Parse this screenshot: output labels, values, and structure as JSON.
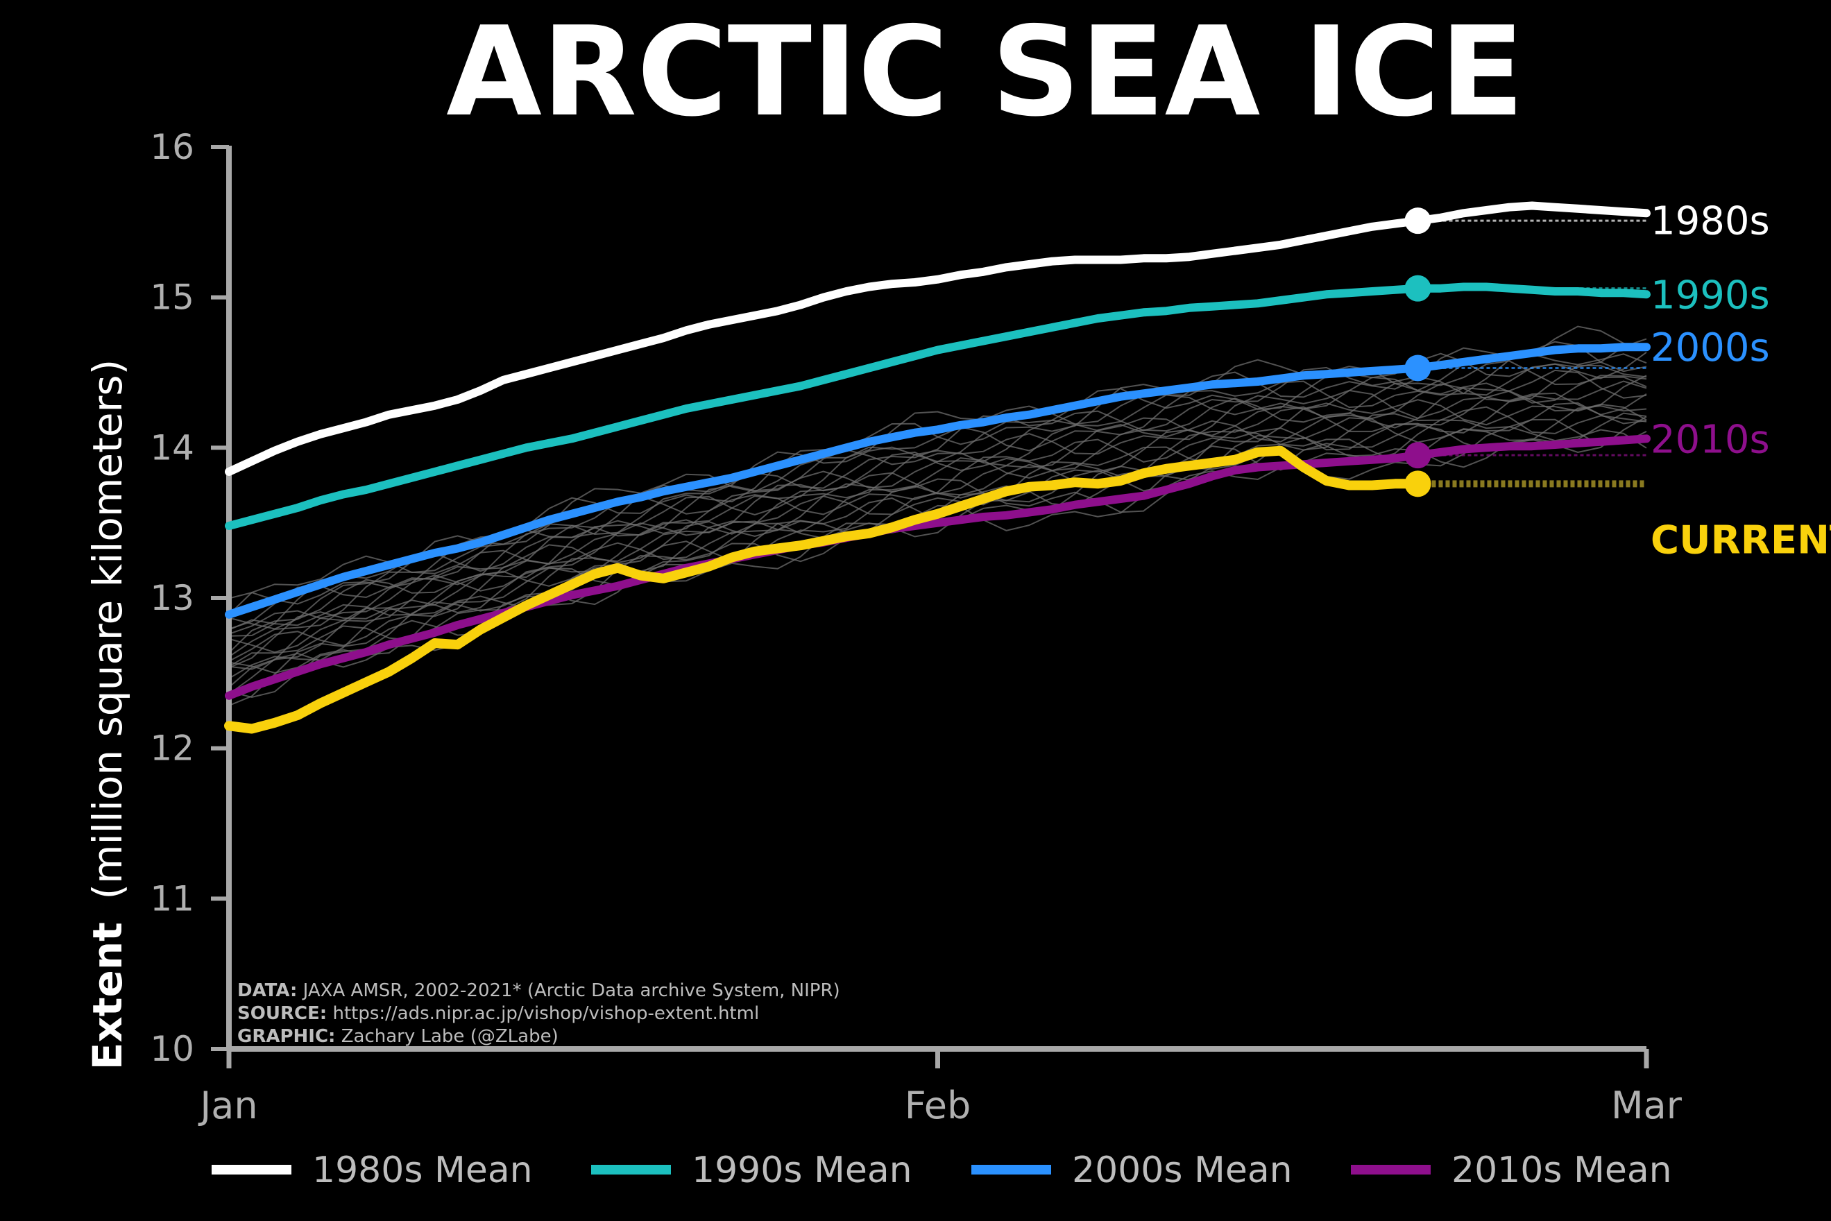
{
  "chart_data": {
    "type": "line",
    "title": "ARCTIC SEA ICE",
    "ylabel_bold": "Extent",
    "ylabel_rest": "(million square kilometers)",
    "xlabel": "",
    "ylim": [
      10,
      16
    ],
    "yticks": [
      "10",
      "11",
      "12",
      "13",
      "14",
      "15",
      "16"
    ],
    "xticks": [
      {
        "label": "Jan",
        "day": 0
      },
      {
        "label": "Feb",
        "day": 31
      },
      {
        "label": "Mar",
        "day": 62
      }
    ],
    "xlim_days": [
      0,
      62
    ],
    "grid": false,
    "legend": "bottom",
    "credits": [
      {
        "bold": "DATA:",
        "text": " JAXA AMSR, 2002-2021* (Arctic Data archive System, NIPR)"
      },
      {
        "bold": "SOURCE:",
        "text": " https://ads.nipr.ac.jp/vishop/vishop-extent.html"
      },
      {
        "bold": "GRAPHIC:",
        "text": " Zachary Labe (@ZLabe)"
      }
    ],
    "marker_day": 52,
    "series": [
      {
        "name": "1980s",
        "legend": "1980s Mean",
        "color": "#ffffff",
        "end_label": "1980s",
        "values": [
          13.84,
          13.91,
          13.98,
          14.04,
          14.09,
          14.13,
          14.17,
          14.22,
          14.25,
          14.28,
          14.32,
          14.38,
          14.45,
          14.49,
          14.53,
          14.57,
          14.61,
          14.65,
          14.69,
          14.73,
          14.78,
          14.82,
          14.85,
          14.88,
          14.91,
          14.95,
          15.0,
          15.04,
          15.07,
          15.09,
          15.1,
          15.12,
          15.15,
          15.17,
          15.2,
          15.22,
          15.24,
          15.25,
          15.25,
          15.25,
          15.26,
          15.26,
          15.27,
          15.29,
          15.31,
          15.33,
          15.35,
          15.38,
          15.41,
          15.44,
          15.47,
          15.49,
          15.51,
          15.53,
          15.56,
          15.58,
          15.6,
          15.61,
          15.6,
          15.59,
          15.58,
          15.57,
          15.56
        ]
      },
      {
        "name": "1990s",
        "legend": "1990s Mean",
        "color": "#1cc0bf",
        "end_label": "1990s",
        "values": [
          13.48,
          13.52,
          13.56,
          13.6,
          13.65,
          13.69,
          13.72,
          13.76,
          13.8,
          13.84,
          13.88,
          13.92,
          13.96,
          14.0,
          14.03,
          14.06,
          14.1,
          14.14,
          14.18,
          14.22,
          14.26,
          14.29,
          14.32,
          14.35,
          14.38,
          14.41,
          14.45,
          14.49,
          14.53,
          14.57,
          14.61,
          14.65,
          14.68,
          14.71,
          14.74,
          14.77,
          14.8,
          14.83,
          14.86,
          14.88,
          14.9,
          14.91,
          14.93,
          14.94,
          14.95,
          14.96,
          14.98,
          15.0,
          15.02,
          15.03,
          15.04,
          15.05,
          15.06,
          15.06,
          15.07,
          15.07,
          15.06,
          15.05,
          15.04,
          15.04,
          15.03,
          15.03,
          15.02
        ]
      },
      {
        "name": "2000s",
        "legend": "2000s Mean",
        "color": "#2b91ff",
        "end_label": "2000s",
        "values": [
          12.89,
          12.94,
          12.99,
          13.04,
          13.09,
          13.14,
          13.18,
          13.22,
          13.26,
          13.3,
          13.33,
          13.37,
          13.42,
          13.47,
          13.52,
          13.56,
          13.6,
          13.64,
          13.67,
          13.71,
          13.74,
          13.77,
          13.8,
          13.84,
          13.88,
          13.92,
          13.96,
          14.0,
          14.04,
          14.07,
          14.1,
          14.12,
          14.15,
          14.17,
          14.2,
          14.22,
          14.25,
          14.28,
          14.31,
          14.34,
          14.36,
          14.38,
          14.4,
          14.42,
          14.43,
          14.44,
          14.46,
          14.48,
          14.49,
          14.5,
          14.51,
          14.52,
          14.53,
          14.55,
          14.57,
          14.59,
          14.61,
          14.63,
          14.65,
          14.66,
          14.66,
          14.67,
          14.67
        ]
      },
      {
        "name": "2010s",
        "legend": "2010s Mean",
        "color": "#8e0f8c",
        "end_label": "2010s",
        "values": [
          12.35,
          12.41,
          12.46,
          12.51,
          12.56,
          12.6,
          12.64,
          12.69,
          12.73,
          12.77,
          12.82,
          12.86,
          12.9,
          12.94,
          12.98,
          13.02,
          13.05,
          13.08,
          13.12,
          13.16,
          13.2,
          13.23,
          13.26,
          13.29,
          13.32,
          13.35,
          13.37,
          13.4,
          13.43,
          13.46,
          13.48,
          13.5,
          13.52,
          13.54,
          13.55,
          13.57,
          13.59,
          13.62,
          13.64,
          13.66,
          13.68,
          13.72,
          13.76,
          13.81,
          13.85,
          13.87,
          13.88,
          13.89,
          13.9,
          13.91,
          13.92,
          13.93,
          13.95,
          13.97,
          13.99,
          14.0,
          14.01,
          14.01,
          14.02,
          14.03,
          14.04,
          14.05,
          14.06
        ]
      },
      {
        "name": "CURRENT",
        "legend": "",
        "color": "#f9d10c",
        "end_label": "CURRENT",
        "values": [
          12.15,
          12.13,
          12.17,
          12.22,
          12.3,
          12.37,
          12.44,
          12.51,
          12.6,
          12.7,
          12.69,
          12.79,
          12.87,
          12.95,
          13.02,
          13.09,
          13.16,
          13.2,
          13.15,
          13.13,
          13.17,
          13.21,
          13.27,
          13.31,
          13.33,
          13.35,
          13.38,
          13.41,
          13.43,
          13.47,
          13.52,
          13.56,
          13.61,
          13.66,
          13.71,
          13.74,
          13.75,
          13.77,
          13.76,
          13.78,
          13.83,
          13.86,
          13.88,
          13.9,
          13.92,
          13.97,
          13.98,
          13.87,
          13.78,
          13.75,
          13.75,
          13.76,
          13.76
        ]
      }
    ]
  }
}
